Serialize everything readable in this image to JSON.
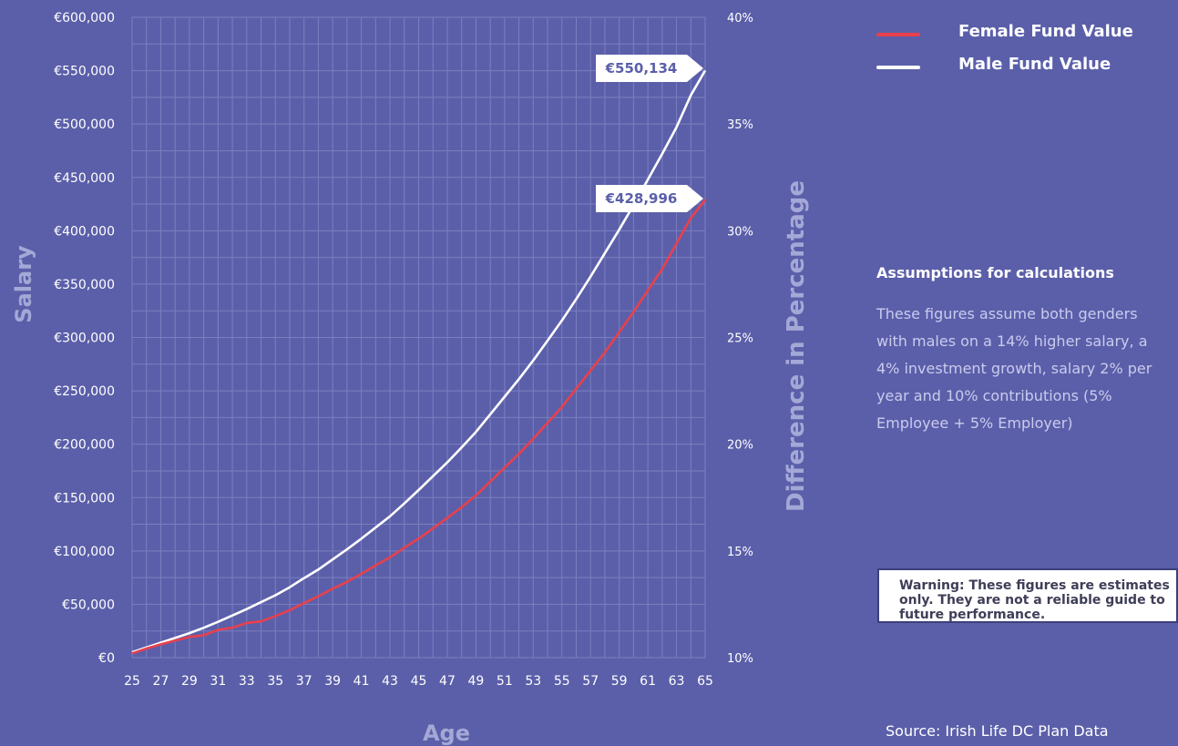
{
  "chart_data": {
    "type": "line",
    "xlabel": "Age",
    "ylabel": "Salary",
    "y2label": "Difference in Percentage",
    "x": [
      25,
      26,
      27,
      28,
      29,
      30,
      31,
      32,
      33,
      34,
      35,
      36,
      37,
      38,
      39,
      40,
      41,
      42,
      43,
      44,
      45,
      46,
      47,
      48,
      49,
      50,
      51,
      52,
      53,
      54,
      55,
      56,
      57,
      58,
      59,
      60,
      61,
      62,
      63,
      64,
      65
    ],
    "xticks": [
      25,
      27,
      29,
      31,
      33,
      35,
      37,
      39,
      41,
      43,
      45,
      47,
      49,
      51,
      53,
      55,
      57,
      59,
      61,
      63,
      65
    ],
    "ylim": [
      0,
      600000
    ],
    "yticks": [
      "€0",
      "€50,000",
      "€100,000",
      "€150,000",
      "€200,000",
      "€250,000",
      "€300,000",
      "€350,000",
      "€400,000",
      "€450,000",
      "€500,000",
      "€550,000",
      "€600,000"
    ],
    "y2lim": [
      10,
      40
    ],
    "y2ticks": [
      "10%",
      "15%",
      "20%",
      "25%",
      "30%",
      "35%",
      "40%"
    ],
    "grid": true,
    "legend_position": "top-right",
    "series": [
      {
        "name": "Female Fund Value",
        "color": "#e8404d",
        "values": [
          4000,
          8500,
          12500,
          16000,
          19500,
          21000,
          26000,
          28000,
          32500,
          34000,
          39000,
          44500,
          51000,
          57500,
          64500,
          71000,
          78500,
          86500,
          94000,
          103000,
          111500,
          121000,
          131000,
          141000,
          152000,
          165000,
          178000,
          191000,
          205000,
          220000,
          235000,
          252000,
          269000,
          286000,
          305000,
          324000,
          344000,
          364000,
          388000,
          412000,
          428996
        ],
        "callout": "€428,996"
      },
      {
        "name": "Male Fund Value",
        "color": "#ffffff",
        "values": [
          5000,
          9500,
          14000,
          18500,
          23000,
          28000,
          33500,
          39500,
          45500,
          52000,
          58500,
          66000,
          74500,
          82500,
          92000,
          101500,
          111500,
          122000,
          132500,
          144500,
          157000,
          170000,
          183000,
          197000,
          211500,
          228000,
          244500,
          261000,
          278500,
          297000,
          316000,
          336000,
          357000,
          379000,
          401000,
          424000,
          448000,
          472000,
          497000,
          527000,
          550134
        ],
        "callout": "€550,134"
      }
    ]
  },
  "legend": [
    {
      "label": "Female Fund Value",
      "color": "#e8404d"
    },
    {
      "label": "Male Fund Value",
      "color": "#ffffff"
    }
  ],
  "assumptions": {
    "title": "Assumptions for calculations",
    "body": "These figures assume both genders with males on a 14% higher salary, a 4% investment growth, salary 2% per year and 10% contributions (5% Employee + 5% Employer)"
  },
  "warning": "Warning: These figures are estimates only. They are not a reliable guide to future performance.",
  "source": "Source: Irish Life DC Plan Data"
}
